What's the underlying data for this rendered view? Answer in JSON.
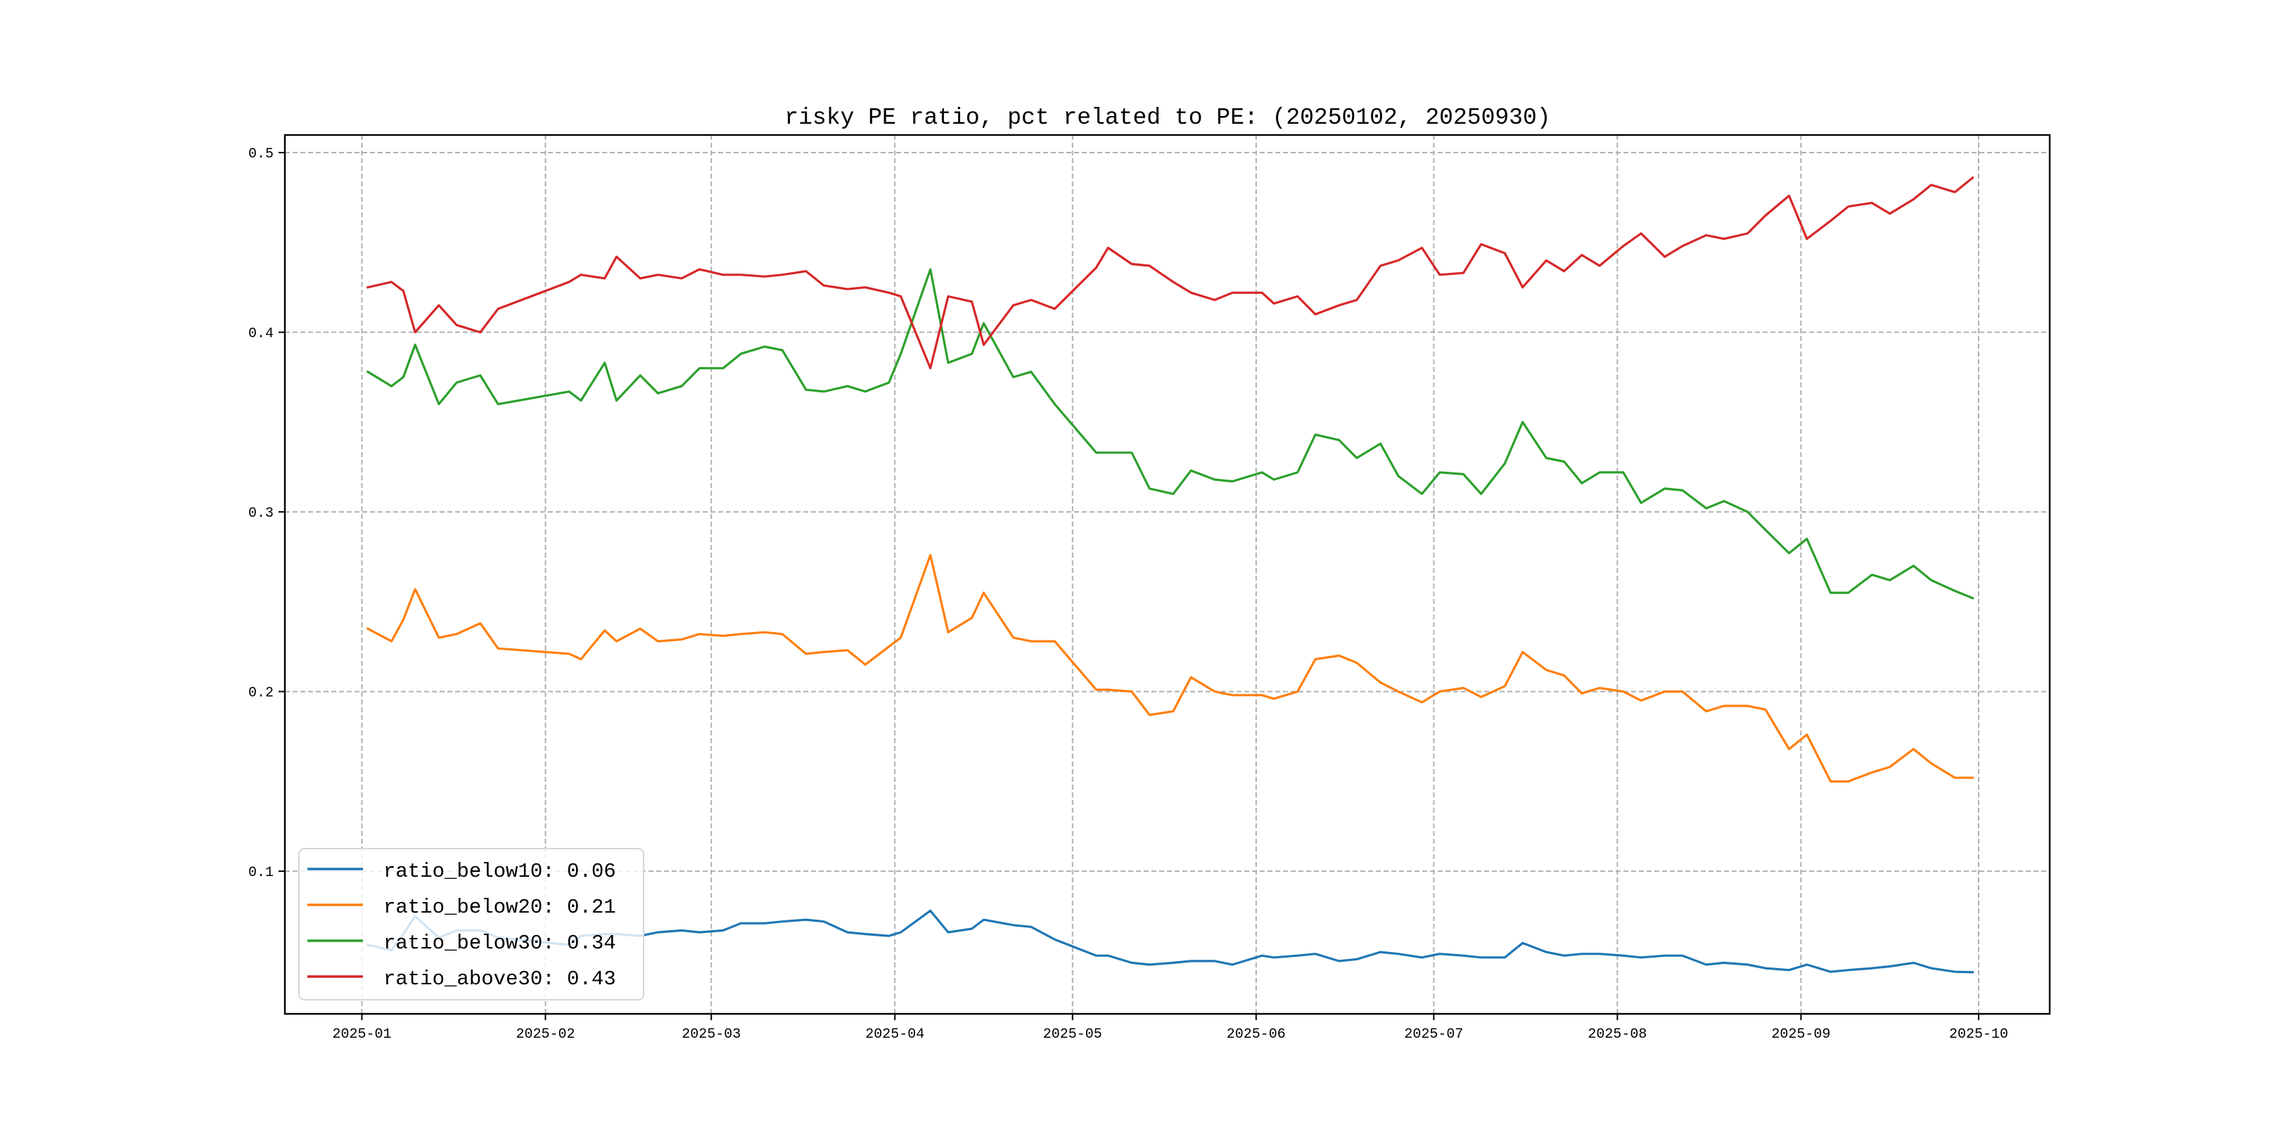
{
  "chart_data": {
    "type": "line",
    "title": "risky PE ratio, pct related to PE: (20250102, 20250930)",
    "xlabel": "",
    "ylabel": "",
    "xlim": [
      "2024-12-19",
      "2025-10-13"
    ],
    "ylim": [
      0.0206,
      0.5098
    ],
    "grid": true,
    "legend_position": "lower-left",
    "x_ticks": [
      "2025-01",
      "2025-02",
      "2025-03",
      "2025-04",
      "2025-05",
      "2025-06",
      "2025-07",
      "2025-08",
      "2025-09",
      "2025-10"
    ],
    "y_ticks": [
      "0.1",
      "0.2",
      "0.3",
      "0.4",
      "0.5"
    ],
    "x": [
      "2025-01-02",
      "2025-01-06",
      "2025-01-08",
      "2025-01-10",
      "2025-01-14",
      "2025-01-17",
      "2025-01-21",
      "2025-01-24",
      "2025-02-05",
      "2025-02-07",
      "2025-02-11",
      "2025-02-13",
      "2025-02-17",
      "2025-02-20",
      "2025-02-24",
      "2025-02-27",
      "2025-03-03",
      "2025-03-06",
      "2025-03-10",
      "2025-03-13",
      "2025-03-17",
      "2025-03-20",
      "2025-03-24",
      "2025-03-27",
      "2025-03-31",
      "2025-04-02",
      "2025-04-07",
      "2025-04-10",
      "2025-04-14",
      "2025-04-16",
      "2025-04-21",
      "2025-04-24",
      "2025-04-28",
      "2025-05-05",
      "2025-05-07",
      "2025-05-11",
      "2025-05-14",
      "2025-05-18",
      "2025-05-21",
      "2025-05-25",
      "2025-05-28",
      "2025-06-02",
      "2025-06-04",
      "2025-06-08",
      "2025-06-11",
      "2025-06-15",
      "2025-06-18",
      "2025-06-22",
      "2025-06-25",
      "2025-06-29",
      "2025-07-02",
      "2025-07-06",
      "2025-07-09",
      "2025-07-13",
      "2025-07-16",
      "2025-07-20",
      "2025-07-23",
      "2025-07-26",
      "2025-07-29",
      "2025-08-02",
      "2025-08-05",
      "2025-08-09",
      "2025-08-12",
      "2025-08-16",
      "2025-08-19",
      "2025-08-23",
      "2025-08-26",
      "2025-08-30",
      "2025-09-02",
      "2025-09-06",
      "2025-09-09",
      "2025-09-13",
      "2025-09-16",
      "2025-09-20",
      "2025-09-23",
      "2025-09-27",
      "2025-09-30"
    ],
    "series": [
      {
        "name": "ratio_below10",
        "legend_label": "ratio_below10: 0.06",
        "color": "#1f77b4",
        "values": [
          0.059,
          0.056,
          0.065,
          0.075,
          0.063,
          0.067,
          0.067,
          0.063,
          0.059,
          0.064,
          0.065,
          0.065,
          0.064,
          0.066,
          0.067,
          0.066,
          0.067,
          0.071,
          0.071,
          0.072,
          0.073,
          0.072,
          0.066,
          0.065,
          0.064,
          0.066,
          0.078,
          0.066,
          0.068,
          0.073,
          0.07,
          0.069,
          0.062,
          0.053,
          0.053,
          0.049,
          0.048,
          0.049,
          0.05,
          0.05,
          0.048,
          0.053,
          0.052,
          0.053,
          0.054,
          0.05,
          0.051,
          0.055,
          0.054,
          0.052,
          0.054,
          0.053,
          0.052,
          0.052,
          0.06,
          0.055,
          0.053,
          0.054,
          0.054,
          0.053,
          0.052,
          0.053,
          0.053,
          0.048,
          0.049,
          0.048,
          0.046,
          0.045,
          0.048,
          0.044,
          0.045,
          0.046,
          0.047,
          0.049,
          0.046,
          0.044,
          0.0438
        ]
      },
      {
        "name": "ratio_below20",
        "legend_label": "ratio_below20: 0.21",
        "color": "#ff7f0e",
        "values": [
          0.235,
          0.228,
          0.24,
          0.257,
          0.23,
          0.232,
          0.238,
          0.224,
          0.221,
          0.218,
          0.234,
          0.228,
          0.235,
          0.228,
          0.229,
          0.232,
          0.231,
          0.232,
          0.233,
          0.232,
          0.221,
          0.222,
          0.223,
          0.215,
          0.225,
          0.23,
          0.276,
          0.233,
          0.241,
          0.255,
          0.23,
          0.228,
          0.228,
          0.201,
          0.201,
          0.2,
          0.187,
          0.189,
          0.208,
          0.2,
          0.198,
          0.198,
          0.196,
          0.2,
          0.218,
          0.22,
          0.216,
          0.205,
          0.2,
          0.194,
          0.2,
          0.202,
          0.197,
          0.203,
          0.222,
          0.212,
          0.209,
          0.199,
          0.202,
          0.2,
          0.195,
          0.2,
          0.2,
          0.189,
          0.192,
          0.192,
          0.19,
          0.168,
          0.176,
          0.15,
          0.15,
          0.155,
          0.158,
          0.168,
          0.16,
          0.152,
          0.152
        ]
      },
      {
        "name": "ratio_below30",
        "legend_label": "ratio_below30: 0.34",
        "color": "#2ca02c",
        "values": [
          0.378,
          0.37,
          0.375,
          0.393,
          0.36,
          0.372,
          0.376,
          0.36,
          0.367,
          0.362,
          0.383,
          0.362,
          0.376,
          0.366,
          0.37,
          0.38,
          0.38,
          0.388,
          0.392,
          0.39,
          0.368,
          0.367,
          0.37,
          0.367,
          0.372,
          0.388,
          0.435,
          0.383,
          0.388,
          0.405,
          0.375,
          0.378,
          0.36,
          0.333,
          0.333,
          0.333,
          0.313,
          0.31,
          0.323,
          0.318,
          0.317,
          0.322,
          0.318,
          0.322,
          0.343,
          0.34,
          0.33,
          0.338,
          0.32,
          0.31,
          0.322,
          0.321,
          0.31,
          0.327,
          0.35,
          0.33,
          0.328,
          0.316,
          0.322,
          0.322,
          0.305,
          0.313,
          0.312,
          0.302,
          0.306,
          0.3,
          0.29,
          0.277,
          0.285,
          0.255,
          0.255,
          0.265,
          0.262,
          0.27,
          0.262,
          0.256,
          0.252
        ]
      },
      {
        "name": "ratio_above30",
        "legend_label": "ratio_above30: 0.43",
        "color": "#d62728",
        "values": [
          0.425,
          0.428,
          0.423,
          0.4,
          0.415,
          0.404,
          0.4,
          0.413,
          0.428,
          0.432,
          0.43,
          0.442,
          0.43,
          0.432,
          0.43,
          0.435,
          0.432,
          0.432,
          0.431,
          0.432,
          0.434,
          0.426,
          0.424,
          0.425,
          0.422,
          0.42,
          0.38,
          0.42,
          0.417,
          0.393,
          0.415,
          0.418,
          0.413,
          0.436,
          0.447,
          0.438,
          0.437,
          0.428,
          0.422,
          0.418,
          0.422,
          0.422,
          0.416,
          0.42,
          0.41,
          0.415,
          0.418,
          0.437,
          0.44,
          0.447,
          0.432,
          0.433,
          0.449,
          0.444,
          0.425,
          0.44,
          0.434,
          0.443,
          0.437,
          0.448,
          0.455,
          0.442,
          0.448,
          0.454,
          0.452,
          0.455,
          0.465,
          0.476,
          0.452,
          0.462,
          0.47,
          0.472,
          0.466,
          0.474,
          0.482,
          0.478,
          0.486
        ]
      }
    ]
  }
}
